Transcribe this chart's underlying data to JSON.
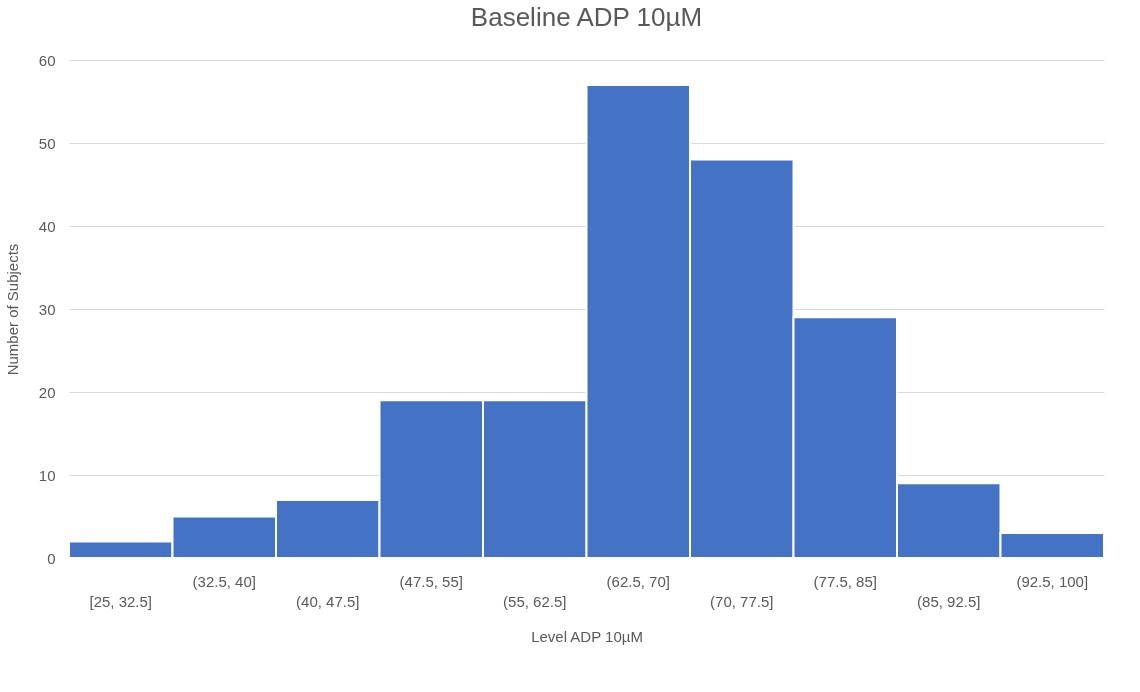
{
  "chart_data": {
    "type": "bar",
    "title": "Baseline ADP 10µM",
    "xlabel": "Level ADP 10µM",
    "ylabel": "Number of Subjects",
    "categories": [
      "[25, 32.5]",
      "(32.5, 40]",
      "(40, 47.5]",
      "(47.5, 55]",
      "(55, 62.5]",
      "(62.5, 70]",
      "(70, 77.5]",
      "(77.5, 85]",
      "(85, 92.5]",
      "(92.5, 100]"
    ],
    "values": [
      2,
      5,
      7,
      19,
      19,
      57,
      48,
      29,
      9,
      3
    ],
    "color": "#4472c4",
    "ylim": [
      0,
      60
    ],
    "yticks": [
      0,
      10,
      20,
      30,
      40,
      50,
      60
    ],
    "grid": "y"
  }
}
